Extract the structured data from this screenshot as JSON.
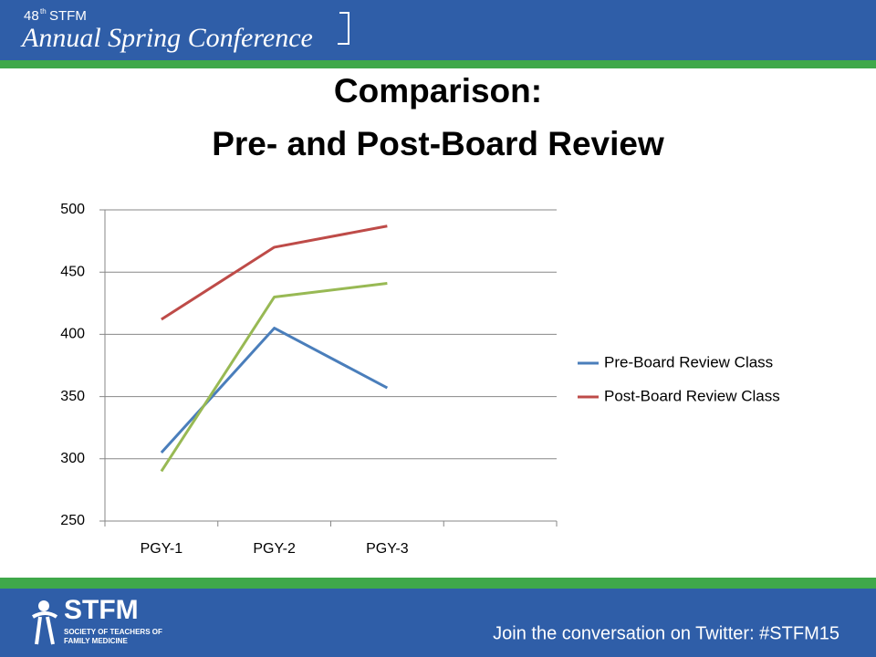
{
  "header": {
    "edition": "48",
    "edition_suffix": "th",
    "org": "STFM",
    "conference": "Annual Spring Conference"
  },
  "chart_data": {
    "type": "line",
    "title": [
      "Comparison:",
      "Pre- and Post-Board Review"
    ],
    "categories": [
      "PGY-1",
      "PGY-2",
      "PGY-3",
      null
    ],
    "series": [
      {
        "name": "Pre-Board Review Class",
        "color": "#4a7ebb",
        "values": [
          305,
          405,
          357,
          null
        ]
      },
      {
        "name": "Post-Board Review Class",
        "color": "#be4b48",
        "values": [
          412,
          470,
          487,
          null
        ]
      },
      {
        "color": "#98b954",
        "values": [
          290,
          430,
          441,
          null
        ]
      }
    ],
    "ylim": [
      250,
      500
    ],
    "yticks": [
      250,
      300,
      350,
      400,
      450,
      500
    ],
    "grid": true,
    "legend": "right"
  },
  "footer": {
    "logo": "STFM",
    "society_line1": "SOCIETY OF TEACHERS OF",
    "society_line2": "FAMILY MEDICINE",
    "tagline": "Join the conversation on Twitter: #STFM15"
  }
}
